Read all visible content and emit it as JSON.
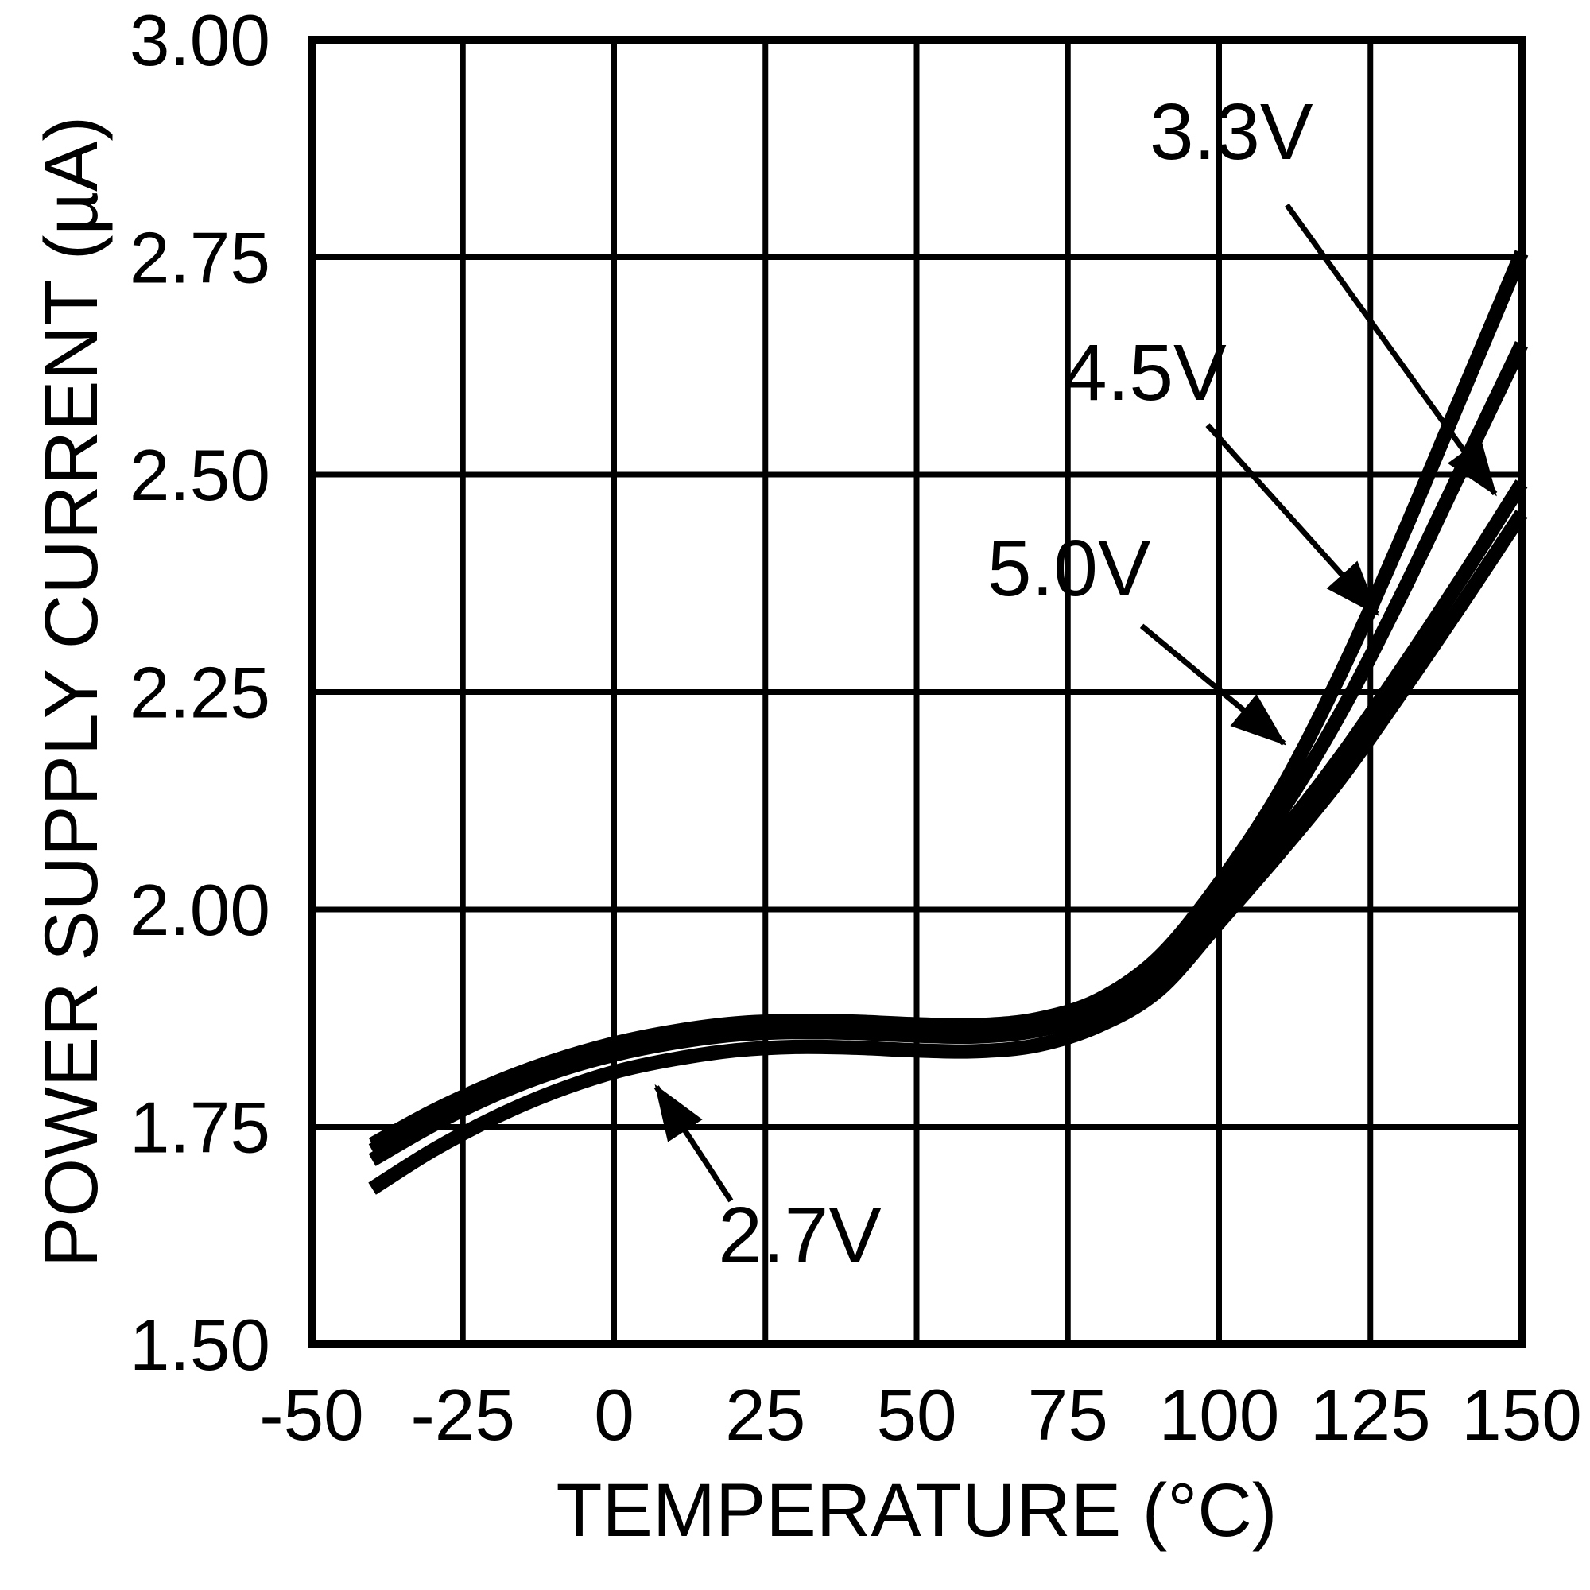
{
  "chart_data": {
    "type": "line",
    "title": "",
    "xlabel": "TEMPERATURE (°C)",
    "ylabel": "POWER SUPPLY CURRENT (µA)",
    "xlim": [
      -50,
      150
    ],
    "ylim": [
      1.5,
      3.0
    ],
    "grid": true,
    "legend_position": "inline-annotations",
    "xticks": [
      {
        "value": -50,
        "label": "-50"
      },
      {
        "value": -25,
        "label": "-25"
      },
      {
        "value": 0,
        "label": "0"
      },
      {
        "value": 25,
        "label": "25"
      },
      {
        "value": 50,
        "label": "50"
      },
      {
        "value": 75,
        "label": "75"
      },
      {
        "value": 100,
        "label": "100"
      },
      {
        "value": 125,
        "label": "125"
      },
      {
        "value": 150,
        "label": "150"
      }
    ],
    "yticks": [
      {
        "value": 3.0,
        "label": "3.00"
      },
      {
        "value": 2.75,
        "label": "2.75"
      },
      {
        "value": 2.5,
        "label": "2.50"
      },
      {
        "value": 2.25,
        "label": "2.25"
      },
      {
        "value": 2.0,
        "label": "2.00"
      },
      {
        "value": 1.75,
        "label": "1.75"
      },
      {
        "value": 1.5,
        "label": "1.50"
      }
    ],
    "x": [
      -40,
      -30,
      -20,
      -10,
      0,
      10,
      20,
      30,
      40,
      50,
      60,
      70,
      80,
      90,
      100,
      110,
      120,
      130,
      140,
      150
    ],
    "series": [
      {
        "name": "5.0V",
        "values": [
          1.73,
          1.768,
          1.8,
          1.826,
          1.846,
          1.86,
          1.869,
          1.872,
          1.871,
          1.868,
          1.867,
          1.874,
          1.896,
          1.945,
          2.03,
          2.135,
          2.27,
          2.425,
          2.59,
          2.755
        ]
      },
      {
        "name": "4.5V",
        "values": [
          1.723,
          1.761,
          1.794,
          1.82,
          1.84,
          1.854,
          1.863,
          1.866,
          1.865,
          1.862,
          1.861,
          1.868,
          1.89,
          1.935,
          2.018,
          2.11,
          2.225,
          2.36,
          2.505,
          2.65
        ]
      },
      {
        "name": "3.3V",
        "values": [
          1.712,
          1.752,
          1.786,
          1.813,
          1.833,
          1.847,
          1.856,
          1.859,
          1.858,
          1.855,
          1.854,
          1.861,
          1.882,
          1.925,
          2.005,
          2.085,
          2.175,
          2.275,
          2.38,
          2.49
        ]
      },
      {
        "name": "2.7V",
        "values": [
          1.679,
          1.723,
          1.76,
          1.79,
          1.813,
          1.828,
          1.838,
          1.842,
          1.841,
          1.838,
          1.837,
          1.844,
          1.866,
          1.907,
          1.985,
          2.065,
          2.15,
          2.248,
          2.35,
          2.455
        ]
      }
    ],
    "annotations": [
      {
        "label": "3.3V",
        "label_x": 102.0,
        "label_y": 2.895,
        "arrow_from_x": 111.2,
        "arrow_from_y": 2.81,
        "arrow_to_x": 145.6,
        "arrow_to_y": 2.478
      },
      {
        "label": "4.5V",
        "label_x": 87.7,
        "label_y": 2.618,
        "arrow_from_x": 98.1,
        "arrow_from_y": 2.557,
        "arrow_to_x": 126.1,
        "arrow_to_y": 2.34
      },
      {
        "label": "5.0V",
        "label_x": 75.2,
        "label_y": 2.393,
        "arrow_from_x": 87.2,
        "arrow_from_y": 2.326,
        "arrow_to_x": 110.7,
        "arrow_to_y": 2.191
      },
      {
        "label": "2.7V",
        "label_x": 30.7,
        "label_y": 1.626,
        "arrow_from_x": 19.3,
        "arrow_from_y": 1.665,
        "arrow_to_x": 7.0,
        "arrow_to_y": 1.796
      }
    ],
    "colors": {
      "line": "#000000",
      "background": "#ffffff"
    }
  }
}
